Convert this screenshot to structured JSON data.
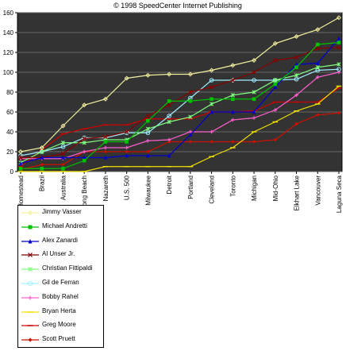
{
  "chart_data": {
    "type": "line",
    "title": "© 1998 SpeedCenter Internet Publishing",
    "categories": [
      "Homestead",
      "Brazil",
      "Australia",
      "Long Beach",
      "Nazareth",
      "U.S. 500",
      "Milwaukee",
      "Detroit",
      "Portland",
      "Cleveland",
      "Toronto",
      "Michigan",
      "Mid-Ohio",
      "Elkhart Lake",
      "Vancouver",
      "Laguna Seca"
    ],
    "ylim": [
      0,
      160
    ],
    "yticks": [
      0,
      20,
      40,
      60,
      80,
      100,
      120,
      140,
      160
    ],
    "grid": true,
    "legend_position": "bottom-left",
    "plot_background": "#333333",
    "series": [
      {
        "name": "Jimmy Vasser",
        "color": "#f5f0a0",
        "marker": "diamond",
        "values": [
          20,
          24,
          46,
          67,
          73,
          94,
          97,
          98,
          98,
          102,
          107,
          112,
          129,
          136,
          143,
          155
        ]
      },
      {
        "name": "Michael Andretti",
        "color": "#00c000",
        "marker": "square",
        "values": [
          3,
          3,
          3,
          11,
          30,
          30,
          51,
          71,
          71,
          73,
          73,
          73,
          88,
          105,
          128,
          130
        ]
      },
      {
        "name": "Alex Zanardi",
        "color": "#0000cc",
        "marker": "triangle",
        "values": [
          8,
          14,
          14,
          14,
          14,
          16,
          16,
          16,
          37,
          60,
          60,
          60,
          85,
          108,
          109,
          134
        ]
      },
      {
        "name": "Al Unser Jr.",
        "color": "#880000",
        "marker": "x",
        "values": [
          14,
          14,
          18,
          33,
          35,
          40,
          56,
          67,
          80,
          85,
          92,
          100,
          112,
          115,
          124,
          125
        ]
      },
      {
        "name": "Christian Fittipaldi",
        "color": "#80ff80",
        "marker": "star",
        "values": [
          9,
          20,
          29,
          29,
          32,
          32,
          43,
          50,
          55,
          68,
          77,
          80,
          92,
          97,
          105,
          108
        ]
      },
      {
        "name": "Gil de Ferran",
        "color": "#a0f0ff",
        "marker": "circle",
        "values": [
          16,
          20,
          25,
          34,
          34,
          39,
          39,
          56,
          74,
          92,
          92,
          92,
          92,
          93,
          102,
          103
        ]
      },
      {
        "name": "Bobby Rahel",
        "color": "#ff60d0",
        "marker": "plus",
        "values": [
          13,
          13,
          13,
          20,
          24,
          24,
          31,
          32,
          40,
          40,
          52,
          54,
          62,
          77,
          95,
          100
        ]
      },
      {
        "name": "Bryan Herta",
        "color": "#f0e000",
        "marker": "dash",
        "values": [
          0,
          0,
          0,
          0,
          5,
          5,
          5,
          5,
          5,
          15,
          24,
          40,
          50,
          61,
          68,
          86
        ]
      },
      {
        "name": "Greg Moore",
        "color": "#d00000",
        "marker": "dash",
        "values": [
          5,
          22,
          38,
          43,
          47,
          47,
          53,
          53,
          53,
          60,
          60,
          61,
          70,
          70,
          70,
          84
        ]
      },
      {
        "name": "Scott Pruett",
        "color": "#cc1100",
        "marker": "diamond-filled",
        "values": [
          2,
          7,
          7,
          20,
          20,
          20,
          20,
          30,
          30,
          30,
          30,
          30,
          32,
          48,
          57,
          59
        ]
      }
    ]
  }
}
